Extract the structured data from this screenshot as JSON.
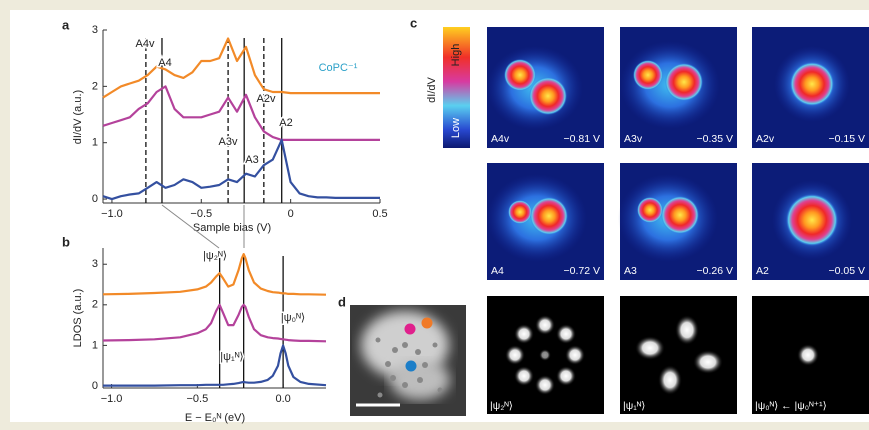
{
  "chart_data": [
    {
      "type": "line",
      "ylabel": "dI/dV (a.u.)",
      "xlabel": "Sample bias (V)",
      "annotation": "CoPC⁻¹",
      "xlim": [
        -1.05,
        0.5
      ],
      "ylim": [
        -0.07,
        3
      ],
      "xticks": [
        {
          "value": -1.0,
          "label": "−1.0"
        },
        {
          "value": -0.5,
          "label": "−0.5"
        },
        0,
        0.5
      ],
      "yticks": [
        0,
        1,
        2,
        3
      ],
      "x": [
        -1.05,
        -1.0,
        -0.95,
        -0.9,
        -0.85,
        -0.8,
        -0.75,
        -0.7,
        -0.65,
        -0.6,
        -0.55,
        -0.5,
        -0.45,
        -0.4,
        -0.35,
        -0.3,
        -0.25,
        -0.2,
        -0.15,
        -0.1,
        -0.05,
        0.0,
        0.05,
        0.1,
        0.15,
        0.2,
        0.25,
        0.3,
        0.35,
        0.4,
        0.45,
        0.5
      ],
      "series": [
        {
          "color": "#f28a28",
          "values": [
            1.8,
            1.9,
            2.0,
            2.05,
            2.1,
            2.2,
            2.35,
            2.3,
            2.2,
            2.15,
            2.25,
            2.45,
            2.45,
            2.5,
            2.85,
            2.45,
            2.7,
            2.2,
            1.95,
            1.9,
            1.9,
            1.88,
            1.88,
            1.88,
            1.88,
            1.88,
            1.88,
            1.88,
            1.88,
            1.88,
            1.88,
            1.88
          ]
        },
        {
          "color": "#b4429b",
          "values": [
            1.3,
            1.35,
            1.4,
            1.45,
            1.6,
            1.7,
            1.9,
            2.0,
            1.6,
            1.45,
            1.45,
            1.45,
            1.5,
            1.55,
            1.8,
            1.55,
            1.85,
            1.45,
            1.2,
            1.1,
            1.05,
            1.05,
            1.05,
            1.05,
            1.05,
            1.05,
            1.05,
            1.05,
            1.05,
            1.05,
            1.05,
            1.05
          ]
        },
        {
          "color": "#3450a0",
          "values": [
            0.05,
            0.0,
            0.05,
            0.08,
            0.1,
            0.2,
            0.3,
            0.2,
            0.25,
            0.35,
            0.3,
            0.2,
            0.22,
            0.25,
            0.35,
            0.3,
            0.45,
            0.4,
            0.6,
            0.7,
            1.05,
            0.3,
            0.1,
            0.05,
            0.03,
            0.03,
            0.02,
            0.02,
            0.02,
            0.02,
            0.02,
            0.02
          ]
        }
      ],
      "vlines": [
        {
          "x": -0.81,
          "style": "dashed",
          "label": "A4v"
        },
        {
          "x": -0.72,
          "style": "solid",
          "label": "A4"
        },
        {
          "x": -0.35,
          "style": "dashed",
          "label": "A3v"
        },
        {
          "x": -0.26,
          "style": "solid",
          "label": "A3"
        },
        {
          "x": -0.15,
          "style": "dashed",
          "label": "A2v"
        },
        {
          "x": -0.05,
          "style": "solid",
          "label": "A2"
        }
      ]
    },
    {
      "type": "line",
      "ylabel": "LDOS (a.u.)",
      "xlabel": "E − E₀ᴺ (eV)",
      "xlim": [
        -1.05,
        0.25
      ],
      "ylim": [
        -0.05,
        3.4
      ],
      "xticks": [
        {
          "value": -1.0,
          "label": "−1.0"
        },
        {
          "value": -0.5,
          "label": "−0.5"
        },
        {
          "value": 0,
          "label": "0.0"
        }
      ],
      "yticks": [
        0,
        1,
        2,
        3
      ],
      "x": [
        -1.05,
        -0.9,
        -0.75,
        -0.6,
        -0.5,
        -0.45,
        -0.42,
        -0.39,
        -0.37,
        -0.35,
        -0.32,
        -0.29,
        -0.26,
        -0.24,
        -0.23,
        -0.22,
        -0.2,
        -0.17,
        -0.13,
        -0.09,
        -0.06,
        -0.03,
        -0.015,
        0,
        0.015,
        0.03,
        0.06,
        0.1,
        0.15,
        0.25
      ],
      "series": [
        {
          "color": "#f28a28",
          "values": [
            2.26,
            2.27,
            2.29,
            2.32,
            2.38,
            2.45,
            2.55,
            2.7,
            2.78,
            2.65,
            2.45,
            2.5,
            2.85,
            3.15,
            3.25,
            3.15,
            2.85,
            2.55,
            2.4,
            2.34,
            2.31,
            2.3,
            2.29,
            2.28,
            2.28,
            2.27,
            2.27,
            2.26,
            2.26,
            2.25
          ]
        },
        {
          "color": "#b4429b",
          "values": [
            1.12,
            1.13,
            1.15,
            1.2,
            1.3,
            1.4,
            1.55,
            1.85,
            2.0,
            1.8,
            1.5,
            1.5,
            1.75,
            1.95,
            2.0,
            1.95,
            1.7,
            1.4,
            1.25,
            1.2,
            1.18,
            1.17,
            1.16,
            1.15,
            1.14,
            1.13,
            1.12,
            1.11,
            1.11,
            1.1
          ]
        },
        {
          "color": "#3450a0",
          "values": [
            0.01,
            0.01,
            0.01,
            0.02,
            0.02,
            0.03,
            0.03,
            0.03,
            0.03,
            0.03,
            0.04,
            0.05,
            0.07,
            0.09,
            0.1,
            0.09,
            0.08,
            0.08,
            0.1,
            0.15,
            0.25,
            0.5,
            0.8,
            1.0,
            0.8,
            0.5,
            0.22,
            0.1,
            0.05,
            0.02
          ]
        }
      ],
      "vlines": [
        {
          "x": -0.37,
          "style": "solid",
          "label": "|ψ₂ᴺ⟩"
        },
        {
          "x": -0.23,
          "style": "solid",
          "label": "|ψ₁ᴺ⟩"
        },
        {
          "x": 0,
          "style": "solid",
          "label": "|ψ₀ᴺ⟩"
        }
      ]
    }
  ],
  "panel_labels": [
    "a",
    "b",
    "c",
    "d"
  ],
  "colorbar": {
    "label": "dI/dV",
    "high": "High",
    "low": "Low"
  },
  "maps": [
    {
      "label": "A4v",
      "bias": "−0.81 V"
    },
    {
      "label": "A3v",
      "bias": "−0.35 V"
    },
    {
      "label": "A2v",
      "bias": "−0.15 V"
    },
    {
      "label": "A4",
      "bias": "−0.72 V"
    },
    {
      "label": "A3",
      "bias": "−0.26 V"
    },
    {
      "label": "A2",
      "bias": "−0.05 V"
    }
  ],
  "orbitals": [
    "|ψ₂ᴺ⟩",
    "|ψ₁ᴺ⟩",
    "|ψ₀ᴺ⟩ ← |ψ₀ᴺ⁺¹⟩"
  ]
}
